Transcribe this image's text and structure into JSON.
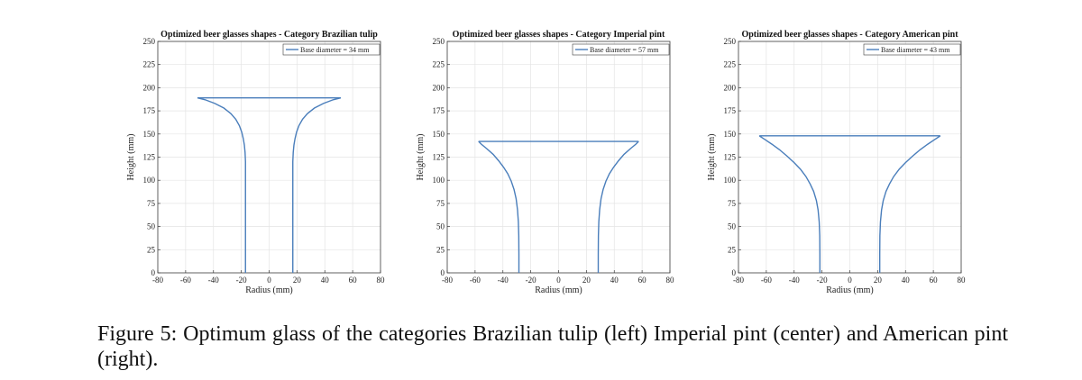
{
  "chart_data": [
    {
      "type": "line",
      "title": "Optimized beer glasses shapes - Category Brazilian tulip",
      "xlabel": "Radius (mm)",
      "ylabel": "Height (mm)",
      "xlim": [
        -80,
        80
      ],
      "ylim": [
        0,
        250
      ],
      "xticks": [
        -80,
        -60,
        -40,
        -20,
        0,
        20,
        40,
        60,
        80
      ],
      "yticks": [
        0,
        25,
        50,
        75,
        100,
        125,
        150,
        175,
        200,
        225,
        250
      ],
      "grid": true,
      "legend": "top-right",
      "series": [
        {
          "name": "Base diameter = 34 mm",
          "color": "#4a7ebb",
          "x": [
            17,
            17,
            17,
            17,
            17,
            17,
            17.3,
            17.8,
            18.6,
            19.7,
            21.4,
            24,
            27.5,
            32.5,
            39,
            46,
            51.5
          ],
          "y": [
            0,
            25,
            50,
            75,
            100,
            120,
            130,
            138,
            145,
            152,
            159,
            166,
            172,
            178,
            183,
            187,
            189
          ]
        }
      ]
    },
    {
      "type": "line",
      "title": "Optimized beer glasses shapes - Category Imperial pint",
      "xlabel": "Radius (mm)",
      "ylabel": "Height (mm)",
      "xlim": [
        -80,
        80
      ],
      "ylim": [
        0,
        250
      ],
      "xticks": [
        -80,
        -60,
        -40,
        -20,
        0,
        20,
        40,
        60,
        80
      ],
      "yticks": [
        0,
        25,
        50,
        75,
        100,
        125,
        150,
        175,
        200,
        225,
        250
      ],
      "grid": true,
      "legend": "top-right",
      "series": [
        {
          "name": "Base diameter = 57 mm",
          "color": "#4a7ebb",
          "x": [
            28.5,
            28.5,
            28.6,
            28.9,
            29.5,
            30.5,
            32,
            34,
            36.5,
            39.5,
            43,
            47,
            51.5,
            55.5,
            57.5
          ],
          "y": [
            0,
            20,
            40,
            55,
            68,
            80,
            90,
            99,
            107,
            114,
            121,
            128,
            134,
            139,
            142
          ]
        }
      ]
    },
    {
      "type": "line",
      "title": "Optimized beer glasses shapes - Category American pint",
      "xlabel": "Radius (mm)",
      "ylabel": "Height (mm)",
      "xlim": [
        -80,
        80
      ],
      "ylim": [
        0,
        250
      ],
      "xticks": [
        -80,
        -60,
        -40,
        -20,
        0,
        20,
        40,
        60,
        80
      ],
      "yticks": [
        0,
        25,
        50,
        75,
        100,
        125,
        150,
        175,
        200,
        225,
        250
      ],
      "grid": true,
      "legend": "top-right",
      "series": [
        {
          "name": "Base diameter = 43 mm",
          "color": "#4a7ebb",
          "x": [
            21.5,
            21.5,
            21.6,
            22,
            22.8,
            24,
            26,
            28.5,
            31.5,
            35.5,
            40,
            45,
            50.5,
            56,
            61,
            65
          ],
          "y": [
            0,
            20,
            40,
            55,
            68,
            78,
            88,
            96,
            104,
            112,
            119,
            126,
            133,
            139,
            144,
            148
          ]
        }
      ]
    }
  ],
  "caption": {
    "text": "Figure 5: Optimum glass of the categories Brazilian tulip (left) Imperial pint (center) and American pint (right)."
  }
}
